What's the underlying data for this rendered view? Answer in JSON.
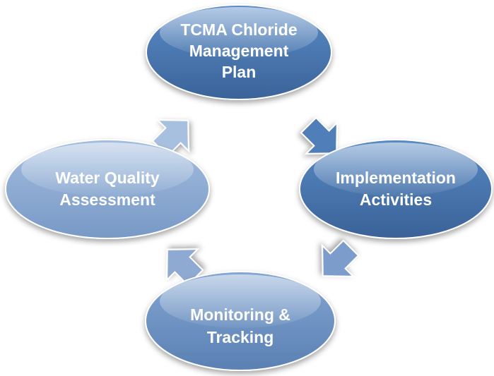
{
  "nodes": [
    {
      "lines": [
        "TCMA Chloride",
        "Management",
        "Plan"
      ]
    },
    {
      "lines": [
        "Implementation",
        "Activities"
      ]
    },
    {
      "lines": [
        "Monitoring &",
        "Tracking"
      ]
    },
    {
      "lines": [
        "Water Quality",
        "Assessment"
      ]
    }
  ]
}
